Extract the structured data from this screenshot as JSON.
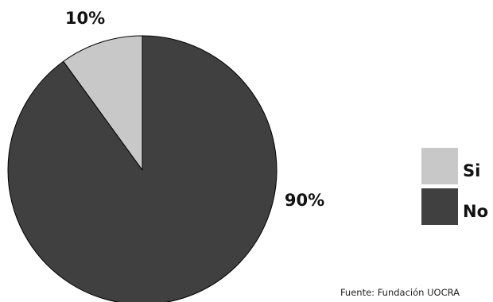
{
  "chart_data": {
    "type": "pie",
    "slices": [
      {
        "label": "Si",
        "value": 10,
        "value_label": "10%",
        "color": "#c8c8c8"
      },
      {
        "label": "No",
        "value": 90,
        "value_label": "90%",
        "color": "#404040"
      }
    ],
    "legend_position": "right",
    "title": "",
    "source": "Fuente: Fundación UOCRA"
  }
}
